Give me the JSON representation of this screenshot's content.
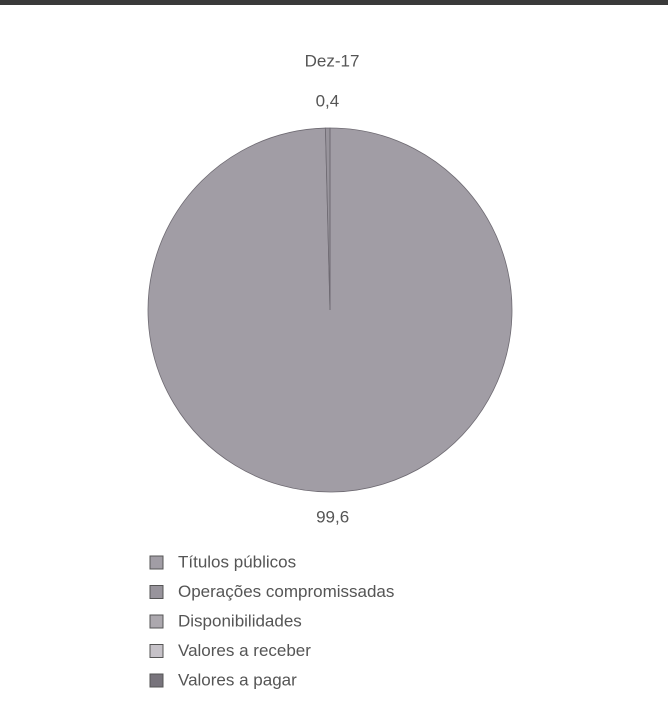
{
  "chart_data": {
    "type": "pie",
    "title": "Dez-17",
    "categories": [
      "Títulos públicos",
      "Operações compromissadas",
      "Disponibilidades",
      "Valores a receber",
      "Valores a pagar"
    ],
    "values": [
      99.6,
      0.4,
      0,
      0,
      0
    ],
    "value_labels": [
      "99,6",
      "0,4",
      null,
      null,
      null
    ],
    "colors": [
      "#a19da5",
      "#98949c",
      "#aca8ae",
      "#c6c2c8",
      "#78747c"
    ],
    "legend": "bottom"
  }
}
